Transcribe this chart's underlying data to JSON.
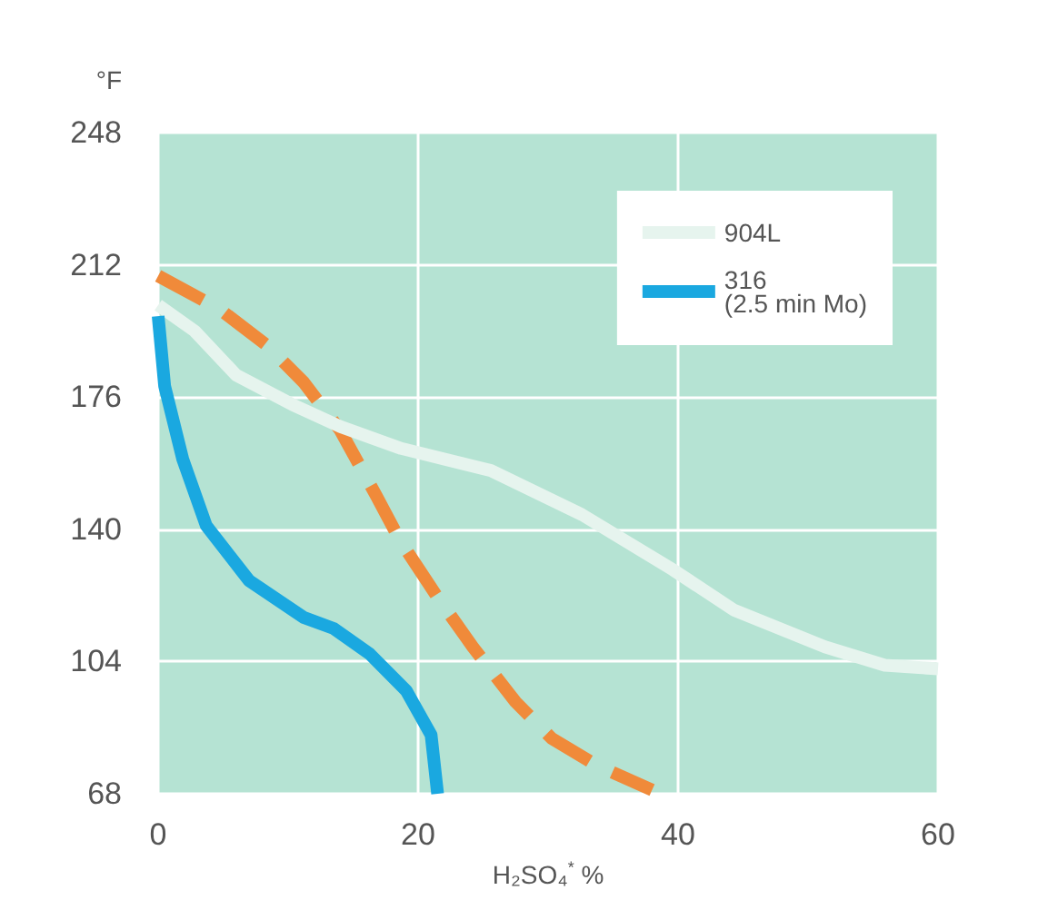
{
  "chart_data": {
    "type": "line",
    "ylabel": "°F",
    "xlabel": "H₂SO₄$^{*}$ %",
    "xlim": [
      0,
      60
    ],
    "xticks": [
      0,
      20,
      40,
      60
    ],
    "ylim": [
      68,
      248
    ],
    "yticks": [
      68,
      104,
      140,
      176,
      212,
      248
    ],
    "grid": true,
    "legend": "top right",
    "marker": "none",
    "series": [
      {
        "color": "#f08a3a",
        "line_style": "dashed",
        "x": [
          0,
          4.7,
          8.4,
          11.2,
          14,
          16.8,
          18.6,
          21.4,
          24.2,
          27.5,
          30.3,
          33.6,
          38
        ],
        "values": [
          209,
          200,
          190,
          180,
          167,
          149,
          137,
          122,
          108,
          93,
          83,
          76,
          69
        ]
      },
      {
        "name": "904L",
        "color": "#e6f4ee",
        "line_style": "solid",
        "x": [
          0,
          2.8,
          6,
          10.3,
          14,
          18.7,
          25.6,
          32.6,
          39.6,
          44.3,
          51.3,
          55.9,
          60
        ],
        "values": [
          201,
          194,
          182,
          174,
          168,
          162,
          156,
          144,
          129,
          118,
          108,
          103,
          102
        ]
      },
      {
        "name": "316\n(2.5 min Mo)",
        "color": "#1aa8e0",
        "line_style": "solid",
        "x": [
          0,
          0.5,
          1.9,
          3.7,
          7,
          11.2,
          13.5,
          16.3,
          19.1,
          21,
          21.5
        ],
        "values": [
          198,
          179,
          159,
          141,
          126,
          116,
          113,
          106,
          96,
          84,
          68
        ]
      }
    ]
  }
}
